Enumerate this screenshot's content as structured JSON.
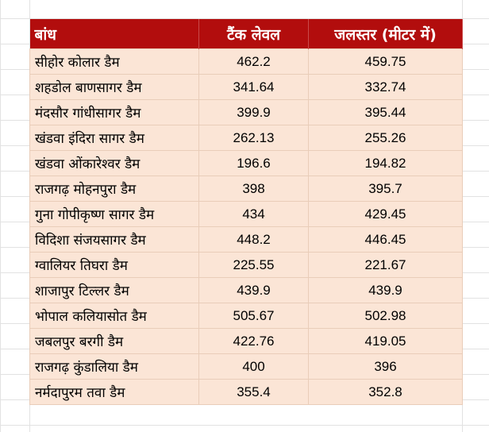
{
  "table": {
    "headers": {
      "dam": "बांध",
      "tank_level": "टैंक लेवल",
      "water_level": "जलस्तर (मीटर में)"
    },
    "rows": [
      {
        "dam": "सीहोर कोलार डैम",
        "tank_level": "462.2",
        "water_level": "459.75"
      },
      {
        "dam": "शहडोल बाणसागर डैम",
        "tank_level": "341.64",
        "water_level": "332.74"
      },
      {
        "dam": "मंदसौर गांधीसागर डैम",
        "tank_level": "399.9",
        "water_level": "395.44"
      },
      {
        "dam": "खंडवा इंदिरा सागर डैम",
        "tank_level": "262.13",
        "water_level": "255.26"
      },
      {
        "dam": "खंडवा ओंकारेश्वर डैम",
        "tank_level": "196.6",
        "water_level": "194.82"
      },
      {
        "dam": "राजगढ़ मोहनपुरा डैम",
        "tank_level": "398",
        "water_level": "395.7"
      },
      {
        "dam": "गुना गोपीकृष्ण सागर डैम",
        "tank_level": "434",
        "water_level": "429.45"
      },
      {
        "dam": "विदिशा संजयसागर डैम",
        "tank_level": "448.2",
        "water_level": "446.45"
      },
      {
        "dam": "ग्वालियर तिघरा डैम",
        "tank_level": "225.55",
        "water_level": "221.67"
      },
      {
        "dam": "शाजापुर टिल्लर डैम",
        "tank_level": "439.9",
        "water_level": "439.9"
      },
      {
        "dam": "भोपाल कलियासोत डैम",
        "tank_level": "505.67",
        "water_level": "502.98"
      },
      {
        "dam": "जबलपुर बरगी डैम",
        "tank_level": "422.76",
        "water_level": "419.05"
      },
      {
        "dam": "राजगढ़ कुंडालिया डैम",
        "tank_level": "400",
        "water_level": "396"
      },
      {
        "dam": "नर्मदापुरम तवा डैम",
        "tank_level": "355.4",
        "water_level": "352.8"
      }
    ]
  },
  "colors": {
    "header_bg": "#b20d0d",
    "header_text": "#ffffff",
    "row_bg": "#fbe5d6",
    "grid": "#e2e2e2"
  }
}
